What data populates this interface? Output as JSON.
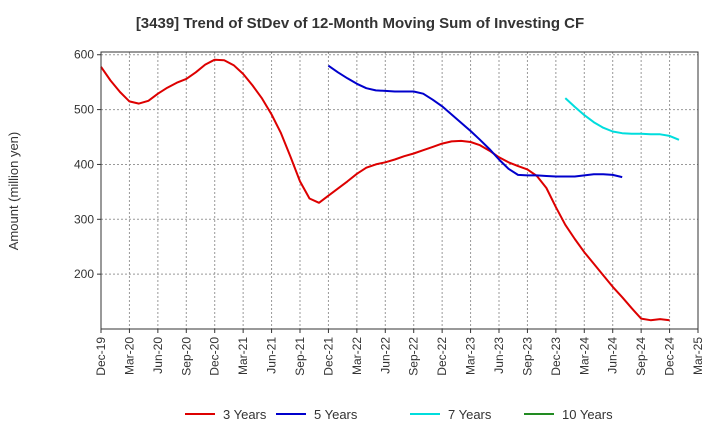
{
  "chart_data": {
    "type": "line",
    "title": "[3439]  Trend of StDev of 12-Month Moving Sum of Investing CF",
    "ylabel": "Amount (million yen)",
    "xlabel": "",
    "ylim": [
      100,
      605
    ],
    "yticks": [
      200,
      300,
      400,
      500,
      600
    ],
    "grid": true,
    "legend_position": "bottom",
    "x_labels": [
      "Dec-19",
      "Mar-20",
      "Jun-20",
      "Sep-20",
      "Dec-20",
      "Mar-21",
      "Jun-21",
      "Sep-21",
      "Dec-21",
      "Mar-22",
      "Jun-22",
      "Sep-22",
      "Dec-22",
      "Mar-23",
      "Jun-23",
      "Sep-23",
      "Dec-23",
      "Mar-24",
      "Jun-24",
      "Sep-24",
      "Dec-24",
      "Mar-25"
    ],
    "series": [
      {
        "name": "3 Years",
        "color": "#dd0000",
        "start_index": 0,
        "values": [
          578,
          553,
          532,
          515,
          511,
          516,
          529,
          540,
          549,
          556,
          568,
          582,
          591,
          590,
          581,
          565,
          544,
          520,
          491,
          457,
          414,
          369,
          338,
          330,
          343,
          356,
          369,
          383,
          394,
          400,
          404,
          409,
          415,
          420,
          426,
          432,
          438,
          442,
          443,
          441,
          435,
          425,
          413,
          404,
          397,
          391,
          379,
          357,
          322,
          290,
          264,
          240,
          219,
          198,
          177,
          158,
          138,
          119,
          116,
          118,
          116
        ]
      },
      {
        "name": "5 Years",
        "color": "#0000cc",
        "start_index": 24,
        "values": [
          580,
          568,
          557,
          547,
          539,
          535,
          534,
          533,
          533,
          533,
          529,
          518,
          506,
          491,
          476,
          461,
          445,
          428,
          409,
          392,
          381,
          380,
          380,
          379,
          378,
          378,
          378,
          380,
          382,
          382,
          381,
          377
        ]
      },
      {
        "name": "7 Years",
        "color": "#00dddd",
        "start_index": 49,
        "values": [
          521,
          505,
          490,
          477,
          467,
          460,
          457,
          456,
          456,
          455,
          455,
          452,
          445
        ]
      },
      {
        "name": "10 Years",
        "color": "#228b22",
        "start_index": 0,
        "values": []
      }
    ]
  }
}
